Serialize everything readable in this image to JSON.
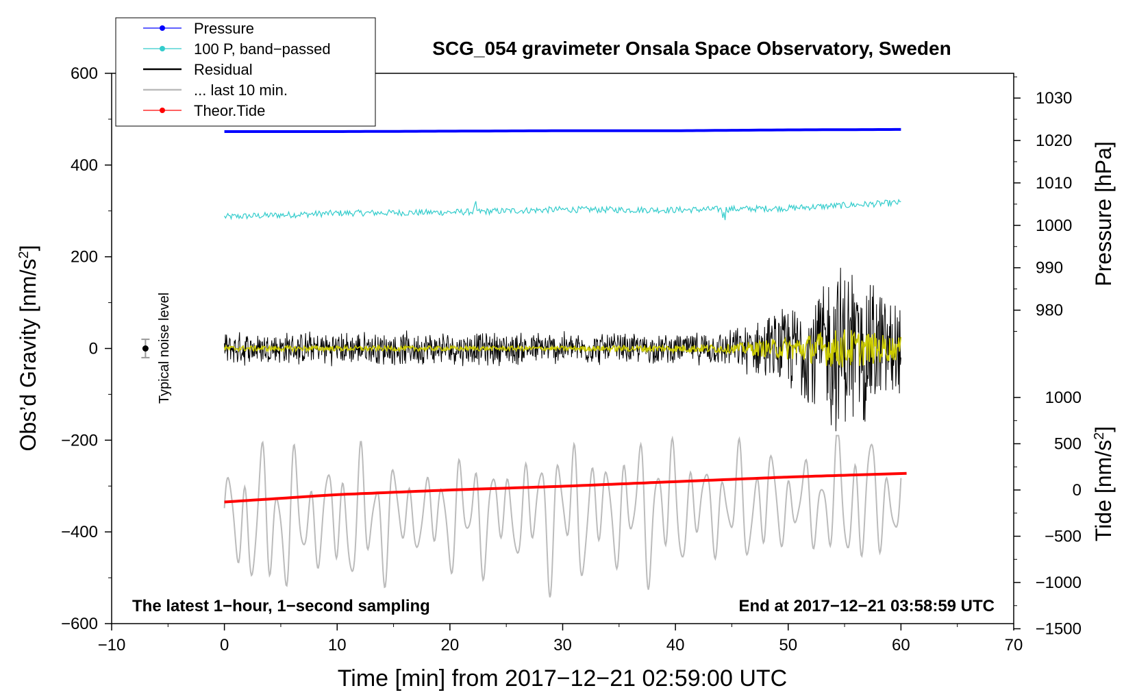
{
  "chart_data": {
    "type": "line",
    "title": "SCG_054 gravimeter Onsala Space Observatory, Sweden",
    "xlabel": "Time [min] from 2017−12−21 02:59:00 UTC",
    "ylabel_left": "Obs’d Gravity [nm/s",
    "ylabel_left_sup": "2",
    "ylabel_left_end": "]",
    "ylabel_right_pressure": "Pressure [hPa]",
    "ylabel_right_tide": "Tide [nm/s",
    "ylabel_right_tide_sup": "2",
    "ylabel_right_tide_end": "]",
    "xlim": [
      -10,
      70
    ],
    "ylim_left": [
      -600,
      600
    ],
    "x_ticks": [
      -10,
      0,
      10,
      20,
      30,
      40,
      50,
      60,
      70
    ],
    "x_tick_labels": [
      "−10",
      "0",
      "10",
      "20",
      "30",
      "40",
      "50",
      "60",
      "70"
    ],
    "y_ticks_left": [
      600,
      400,
      200,
      0,
      -200,
      -400,
      -600
    ],
    "y_tick_labels_left": [
      "600",
      "400",
      "200",
      "0",
      "−200",
      "−400",
      "−600"
    ],
    "pressure_ticks": [
      1030,
      1020,
      1010,
      1000,
      990,
      980
    ],
    "pressure_tick_labels": [
      "1030",
      "1020",
      "1010",
      "1000",
      "990",
      "980"
    ],
    "tide_ticks": [
      1000,
      500,
      0,
      -500,
      -1000,
      -1500
    ],
    "tide_tick_labels": [
      "1000",
      "500",
      "0",
      "−500",
      "−1000",
      "−1500"
    ],
    "legend": [
      {
        "label": "Pressure",
        "color": "#0000ff",
        "marker": true
      },
      {
        "label": "100 P, band−passed",
        "color": "#33cccc",
        "marker": true
      },
      {
        "label": "Residual",
        "color": "#000000",
        "marker": false
      },
      {
        "label": "... last 10 min.",
        "color": "#bbbbbb",
        "marker": false
      },
      {
        "label": "Theor.Tide",
        "color": "#ff0000",
        "marker": true
      }
    ],
    "legend_position": "top-left",
    "annotation_left": "The latest 1−hour, 1−second sampling",
    "annotation_right": "End at 2017−12−21 03:58:59 UTC",
    "noise_label": "Typical noise level",
    "noise_marker": {
      "x": -7,
      "y": 0,
      "err": 20
    },
    "series": [
      {
        "name": "Pressure",
        "axis": "pressure",
        "color": "#0000ff",
        "x": [
          0,
          10,
          20,
          30,
          40,
          50,
          60
        ],
        "values": [
          1022.1,
          1022.1,
          1022.2,
          1022.3,
          1022.3,
          1022.5,
          1022.6
        ]
      },
      {
        "name": "100 P, band−passed",
        "axis": "left",
        "color": "#33cccc",
        "x": [
          0,
          10,
          20,
          30,
          40,
          50,
          60
        ],
        "values": [
          287,
          295,
          297,
          303,
          302,
          306,
          318
        ]
      },
      {
        "name": "Residual",
        "axis": "left",
        "color": "#000000",
        "x": [
          0,
          10,
          20,
          30,
          40,
          45,
          50,
          55,
          60
        ],
        "amplitude": [
          40,
          40,
          40,
          40,
          35,
          45,
          100,
          220,
          120
        ]
      },
      {
        "name": "Residual smoothed",
        "axis": "left",
        "color": "#cccc00",
        "x": [
          0,
          30,
          45,
          50,
          55,
          60
        ],
        "amplitude": [
          6,
          5,
          10,
          25,
          45,
          25
        ]
      },
      {
        "name": "... last 10 min.",
        "axis": "left",
        "color": "#bbbbbb",
        "x": [
          0,
          60
        ],
        "values": [
          -350,
          -300
        ],
        "amplitude_range": [
          -600,
          -190
        ]
      },
      {
        "name": "Theor.Tide",
        "axis": "tide",
        "color": "#ff0000",
        "x": [
          0,
          10,
          20,
          30,
          40,
          50,
          60.5
        ],
        "values": [
          -130,
          -50,
          0,
          40,
          90,
          140,
          180
        ]
      }
    ]
  }
}
